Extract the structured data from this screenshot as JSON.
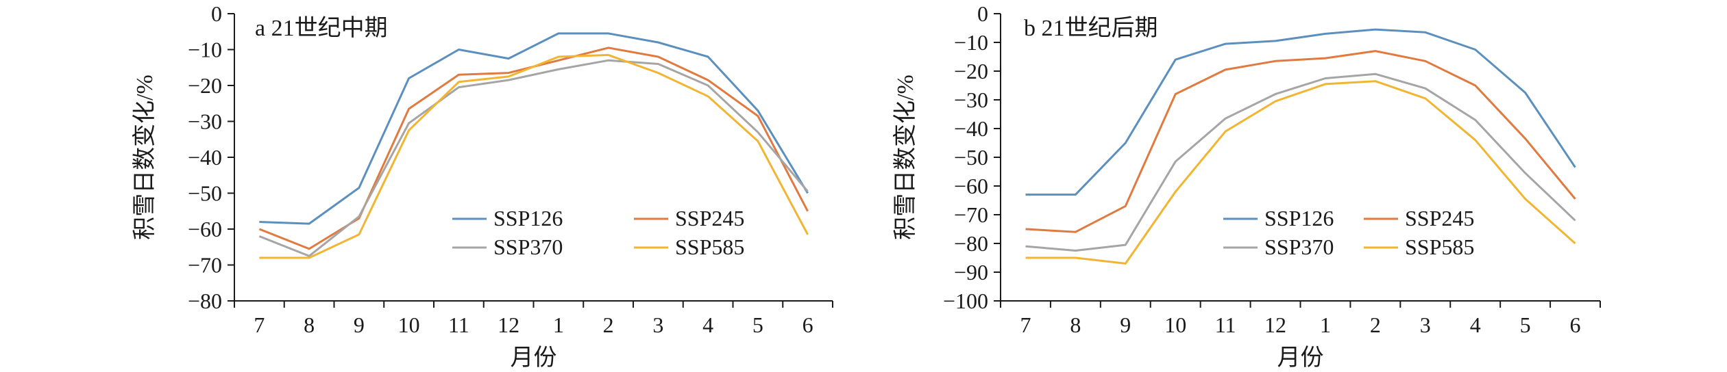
{
  "chart_data": [
    {
      "type": "line",
      "title": "a 21世纪中期",
      "xlabel": "月份",
      "ylabel": "积雪日数变化/%",
      "categories": [
        "7",
        "8",
        "9",
        "10",
        "11",
        "12",
        "1",
        "2",
        "3",
        "4",
        "5",
        "6"
      ],
      "ylim": [
        -80,
        0
      ],
      "yticks": [
        0,
        -10,
        -20,
        -30,
        -40,
        -50,
        -60,
        -70,
        -80
      ],
      "ytick_labels": [
        "0",
        "−10",
        "−20",
        "−30",
        "−40",
        "−50",
        "−60",
        "−70",
        "−80"
      ],
      "legend_position": "lower-right",
      "series": [
        {
          "name": "SSP126",
          "color": "#5b8fbe",
          "values": [
            -58,
            -58.5,
            -48.5,
            -18,
            -10,
            -12.5,
            -5.5,
            -5.5,
            -8,
            -12,
            -27,
            -50
          ]
        },
        {
          "name": "SSP245",
          "color": "#e07a3f",
          "values": [
            -60,
            -65.5,
            -57,
            -26.5,
            -17,
            -16.5,
            -13,
            -9.5,
            -12,
            -18.5,
            -28.5,
            -55
          ]
        },
        {
          "name": "SSP370",
          "color": "#a5a5a5",
          "values": [
            -62,
            -67.5,
            -56.5,
            -30.5,
            -20.5,
            -18.5,
            -15.5,
            -13,
            -14,
            -20,
            -33,
            -49.5
          ]
        },
        {
          "name": "SSP585",
          "color": "#f2b531",
          "values": [
            -68,
            -68,
            -61.5,
            -32.5,
            -19,
            -17.5,
            -12,
            -11.5,
            -16.5,
            -23,
            -35.5,
            -61.5
          ]
        }
      ]
    },
    {
      "type": "line",
      "title": "b 21世纪后期",
      "xlabel": "月份",
      "ylabel": "积雪日数变化/%",
      "categories": [
        "7",
        "8",
        "9",
        "10",
        "11",
        "12",
        "1",
        "2",
        "3",
        "4",
        "5",
        "6"
      ],
      "ylim": [
        -100,
        0
      ],
      "yticks": [
        0,
        -10,
        -20,
        -30,
        -40,
        -50,
        -60,
        -70,
        -80,
        -90,
        -100
      ],
      "ytick_labels": [
        "0",
        "−10",
        "−20",
        "−30",
        "−40",
        "−50",
        "−60",
        "−70",
        "−80",
        "−90",
        "−100"
      ],
      "legend_position": "lower-right",
      "series": [
        {
          "name": "SSP126",
          "color": "#5b8fbe",
          "values": [
            -63,
            -63,
            -45,
            -16,
            -10.5,
            -9.5,
            -7,
            -5.5,
            -6.5,
            -12.5,
            -27.5,
            -53.5
          ]
        },
        {
          "name": "SSP245",
          "color": "#e07a3f",
          "values": [
            -75,
            -76,
            -67,
            -28,
            -19.5,
            -16.5,
            -15.5,
            -13,
            -16.5,
            -25,
            -43.5,
            -64.5
          ]
        },
        {
          "name": "SSP370",
          "color": "#a5a5a5",
          "values": [
            -81,
            -82.5,
            -80.5,
            -51.5,
            -36.5,
            -28,
            -22.5,
            -21,
            -26,
            -37,
            -55.5,
            -72
          ]
        },
        {
          "name": "SSP585",
          "color": "#f2b531",
          "values": [
            -85,
            -85,
            -87,
            -62,
            -41,
            -30.5,
            -24.5,
            -23.5,
            -29.5,
            -44,
            -64.5,
            -80
          ]
        }
      ]
    }
  ]
}
